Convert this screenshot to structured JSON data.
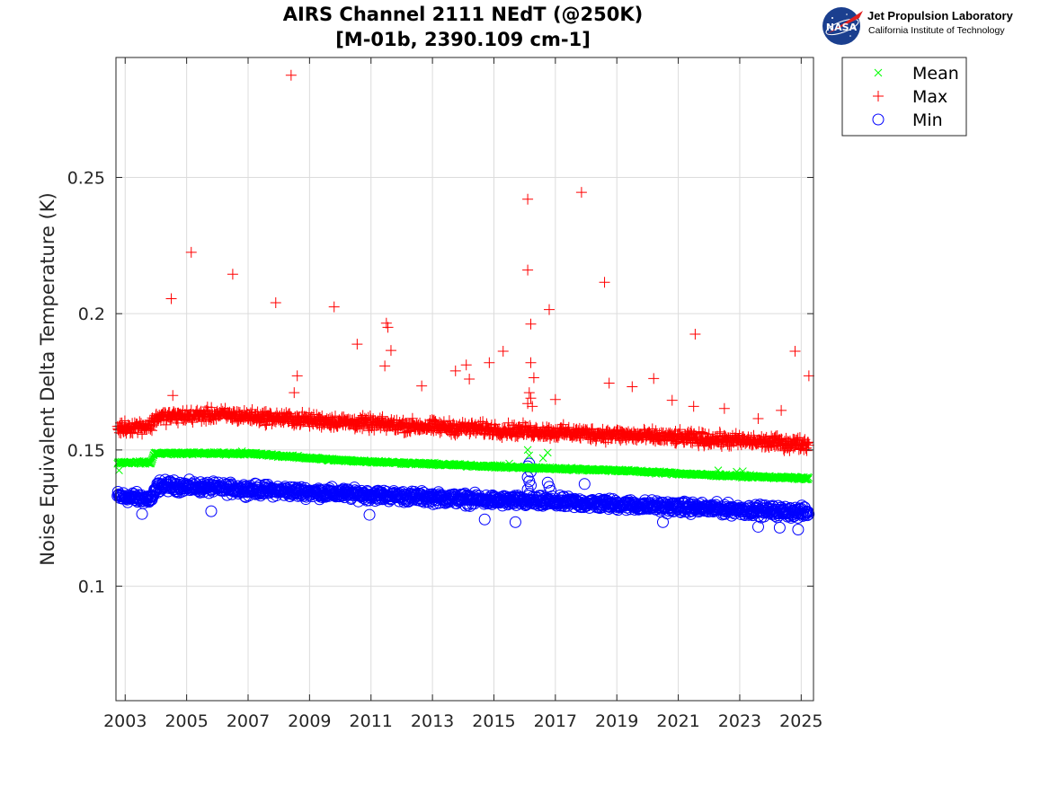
{
  "logo": {
    "badge_text": "NASA",
    "org_name": "Jet Propulsion Laboratory",
    "org_sub": "California Institute of Technology"
  },
  "colors": {
    "mean": "#00ff00",
    "max": "#ff0000",
    "min": "#0000ff",
    "grid": "#dcdcdc",
    "axis": "#262626"
  },
  "chart_data": {
    "type": "scatter",
    "title": "AIRS Channel 2111 NEdT (@250K)",
    "subtitle": "[M-01b, 2390.109 cm-1]",
    "xlabel": "",
    "ylabel": "Noise Equivalent Delta Temperature (K)",
    "xlim": [
      2002.7,
      2025.4
    ],
    "ylim": [
      0.058,
      0.294
    ],
    "xticks": [
      2003,
      2005,
      2007,
      2009,
      2011,
      2013,
      2015,
      2017,
      2019,
      2021,
      2023,
      2025
    ],
    "yticks": [
      0.1,
      0.15,
      0.2,
      0.25
    ],
    "ytick_labels": [
      "0.1",
      "0.15",
      "0.2",
      "0.25"
    ],
    "grid": true,
    "legend_position": "outside-top-right",
    "series": [
      {
        "name": "Mean",
        "marker": "x",
        "trend": [
          [
            2002.7,
            0.1454
          ],
          [
            2003.85,
            0.1454
          ],
          [
            2003.95,
            0.1488
          ],
          [
            2007.0,
            0.1487
          ],
          [
            2010.0,
            0.1462
          ],
          [
            2013.0,
            0.1448
          ],
          [
            2016.0,
            0.1435
          ],
          [
            2019.0,
            0.1425
          ],
          [
            2022.0,
            0.1408
          ],
          [
            2025.3,
            0.1395
          ]
        ],
        "outliers": [
          [
            2002.8,
            0.1425
          ],
          [
            2006.8,
            0.1495
          ],
          [
            2015.5,
            0.145
          ],
          [
            2016.1,
            0.15
          ],
          [
            2016.15,
            0.148
          ],
          [
            2016.6,
            0.147
          ],
          [
            2016.75,
            0.149
          ],
          [
            2022.3,
            0.1425
          ],
          [
            2022.9,
            0.142
          ],
          [
            2023.1,
            0.1422
          ]
        ]
      },
      {
        "name": "Max",
        "marker": "+",
        "trend": [
          [
            2002.7,
            0.158
          ],
          [
            2003.85,
            0.159
          ],
          [
            2004.0,
            0.162
          ],
          [
            2006.0,
            0.163
          ],
          [
            2009.0,
            0.161
          ],
          [
            2012.0,
            0.159
          ],
          [
            2015.0,
            0.1575
          ],
          [
            2018.0,
            0.156
          ],
          [
            2021.0,
            0.1545
          ],
          [
            2025.3,
            0.152
          ]
        ],
        "outliers": [
          [
            2008.4,
            0.2875
          ],
          [
            2016.1,
            0.242
          ],
          [
            2017.85,
            0.2445
          ],
          [
            2005.15,
            0.2225
          ],
          [
            2016.1,
            0.216
          ],
          [
            2006.5,
            0.2145
          ],
          [
            2018.6,
            0.2115
          ],
          [
            2004.5,
            0.2055
          ],
          [
            2007.9,
            0.204
          ],
          [
            2009.8,
            0.2025
          ],
          [
            2016.8,
            0.2015
          ],
          [
            2011.5,
            0.1965
          ],
          [
            2016.2,
            0.1962
          ],
          [
            2011.55,
            0.195
          ],
          [
            2021.55,
            0.1925
          ],
          [
            2010.55,
            0.1888
          ],
          [
            2011.65,
            0.1865
          ],
          [
            2015.3,
            0.1862
          ],
          [
            2024.8,
            0.1862
          ],
          [
            2014.85,
            0.182
          ],
          [
            2016.2,
            0.182
          ],
          [
            2014.1,
            0.1812
          ],
          [
            2011.45,
            0.1808
          ],
          [
            2013.75,
            0.179
          ],
          [
            2008.6,
            0.1772
          ],
          [
            2025.25,
            0.1772
          ],
          [
            2016.3,
            0.1765
          ],
          [
            2014.2,
            0.176
          ],
          [
            2020.2,
            0.1762
          ],
          [
            2012.65,
            0.1735
          ],
          [
            2018.75,
            0.1745
          ],
          [
            2019.5,
            0.1732
          ],
          [
            2008.5,
            0.171
          ],
          [
            2004.55,
            0.17
          ],
          [
            2017.0,
            0.1685
          ],
          [
            2020.8,
            0.1682
          ],
          [
            2021.5,
            0.166
          ],
          [
            2022.5,
            0.1652
          ],
          [
            2024.35,
            0.1645
          ],
          [
            2023.6,
            0.1615
          ],
          [
            2016.15,
            0.171
          ],
          [
            2016.2,
            0.169
          ],
          [
            2016.1,
            0.167
          ],
          [
            2016.25,
            0.166
          ]
        ]
      },
      {
        "name": "Min",
        "marker": "o",
        "trend": [
          [
            2002.7,
            0.133
          ],
          [
            2003.85,
            0.132
          ],
          [
            2004.1,
            0.137
          ],
          [
            2006.0,
            0.136
          ],
          [
            2009.0,
            0.1345
          ],
          [
            2012.0,
            0.133
          ],
          [
            2015.0,
            0.1315
          ],
          [
            2018.0,
            0.1305
          ],
          [
            2021.0,
            0.129
          ],
          [
            2025.3,
            0.127
          ]
        ],
        "outliers": [
          [
            2016.15,
            0.145
          ],
          [
            2016.1,
            0.144
          ],
          [
            2016.2,
            0.142
          ],
          [
            2016.1,
            0.14
          ],
          [
            2016.15,
            0.1385
          ],
          [
            2016.2,
            0.137
          ],
          [
            2016.1,
            0.1355
          ],
          [
            2016.15,
            0.134
          ],
          [
            2017.95,
            0.1375
          ],
          [
            2005.8,
            0.1275
          ],
          [
            2003.55,
            0.1265
          ],
          [
            2015.7,
            0.1235
          ],
          [
            2020.5,
            0.1235
          ],
          [
            2023.6,
            0.1218
          ],
          [
            2024.3,
            0.1215
          ],
          [
            2024.9,
            0.1208
          ],
          [
            2014.7,
            0.1245
          ],
          [
            2010.95,
            0.1262
          ],
          [
            2016.75,
            0.138
          ],
          [
            2016.8,
            0.1365
          ],
          [
            2016.85,
            0.135
          ]
        ]
      }
    ]
  }
}
